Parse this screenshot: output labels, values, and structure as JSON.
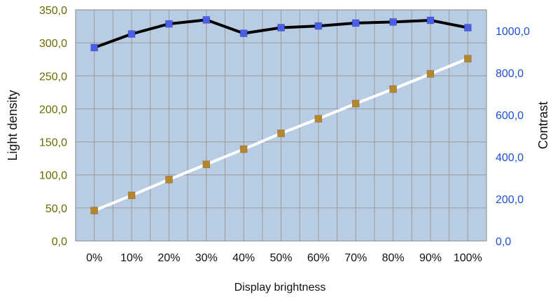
{
  "chart_data": {
    "type": "line",
    "categories": [
      "0%",
      "10%",
      "20%",
      "30%",
      "40%",
      "50%",
      "60%",
      "70%",
      "80%",
      "90%",
      "100%"
    ],
    "xlabel": "Display brightness",
    "ylabel_left": "Light density",
    "ylabel_right": "Contrast",
    "ylim_left": [
      0,
      350
    ],
    "ylim_right": [
      0,
      1100
    ],
    "yticks_left": [
      "0,0",
      "50,0",
      "100,0",
      "150,0",
      "200,0",
      "250,0",
      "300,0",
      "350,0"
    ],
    "yticks_right": [
      "0,0",
      "200,0",
      "400,0",
      "600,0",
      "800,0",
      "1000,0"
    ],
    "grid": true,
    "series": [
      {
        "axis": "left",
        "line_color": "#ffffff",
        "marker_color": "#b8862a",
        "values": [
          46,
          69,
          93,
          116,
          139,
          163,
          185,
          208,
          230,
          253,
          276
        ]
      },
      {
        "axis": "right",
        "line_color": "#000000",
        "marker_color": "#4a5ee8",
        "values": [
          920,
          985,
          1033,
          1052,
          988,
          1015,
          1023,
          1037,
          1042,
          1050,
          1015
        ]
      }
    ],
    "colors": {
      "plot_background": "#b8cce4",
      "grid": "#9a9a9a"
    }
  }
}
